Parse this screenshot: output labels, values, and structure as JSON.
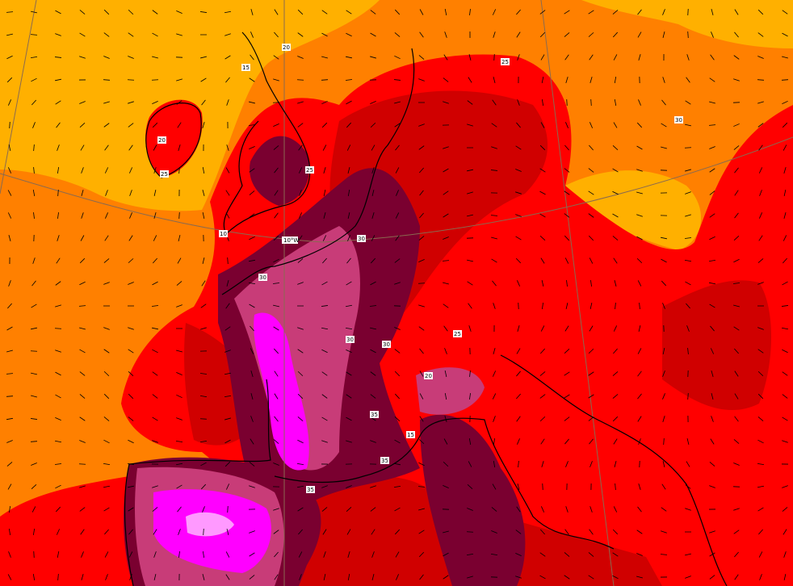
{
  "map": {
    "type": "temperature and wind forecast map",
    "region": "Western and Central Europe",
    "colors": {
      "below_15": "#ffb000",
      "t15_20": "#ff8000",
      "t20_25": "#ff0000",
      "t25_30": "#d00000",
      "t30_35": "#7a0030",
      "t35_40": "#c83c78",
      "above_40": "#ff00ff",
      "coastline": "#000000",
      "graticule": "#8a6a50"
    },
    "graticule_label": "10°W",
    "contour_labels": [
      "10",
      "15",
      "20",
      "20",
      "25",
      "25",
      "30",
      "30",
      "30",
      "30",
      "35",
      "35",
      "35",
      "25",
      "20",
      "15",
      "25",
      "30"
    ],
    "wind_arrows": true
  }
}
